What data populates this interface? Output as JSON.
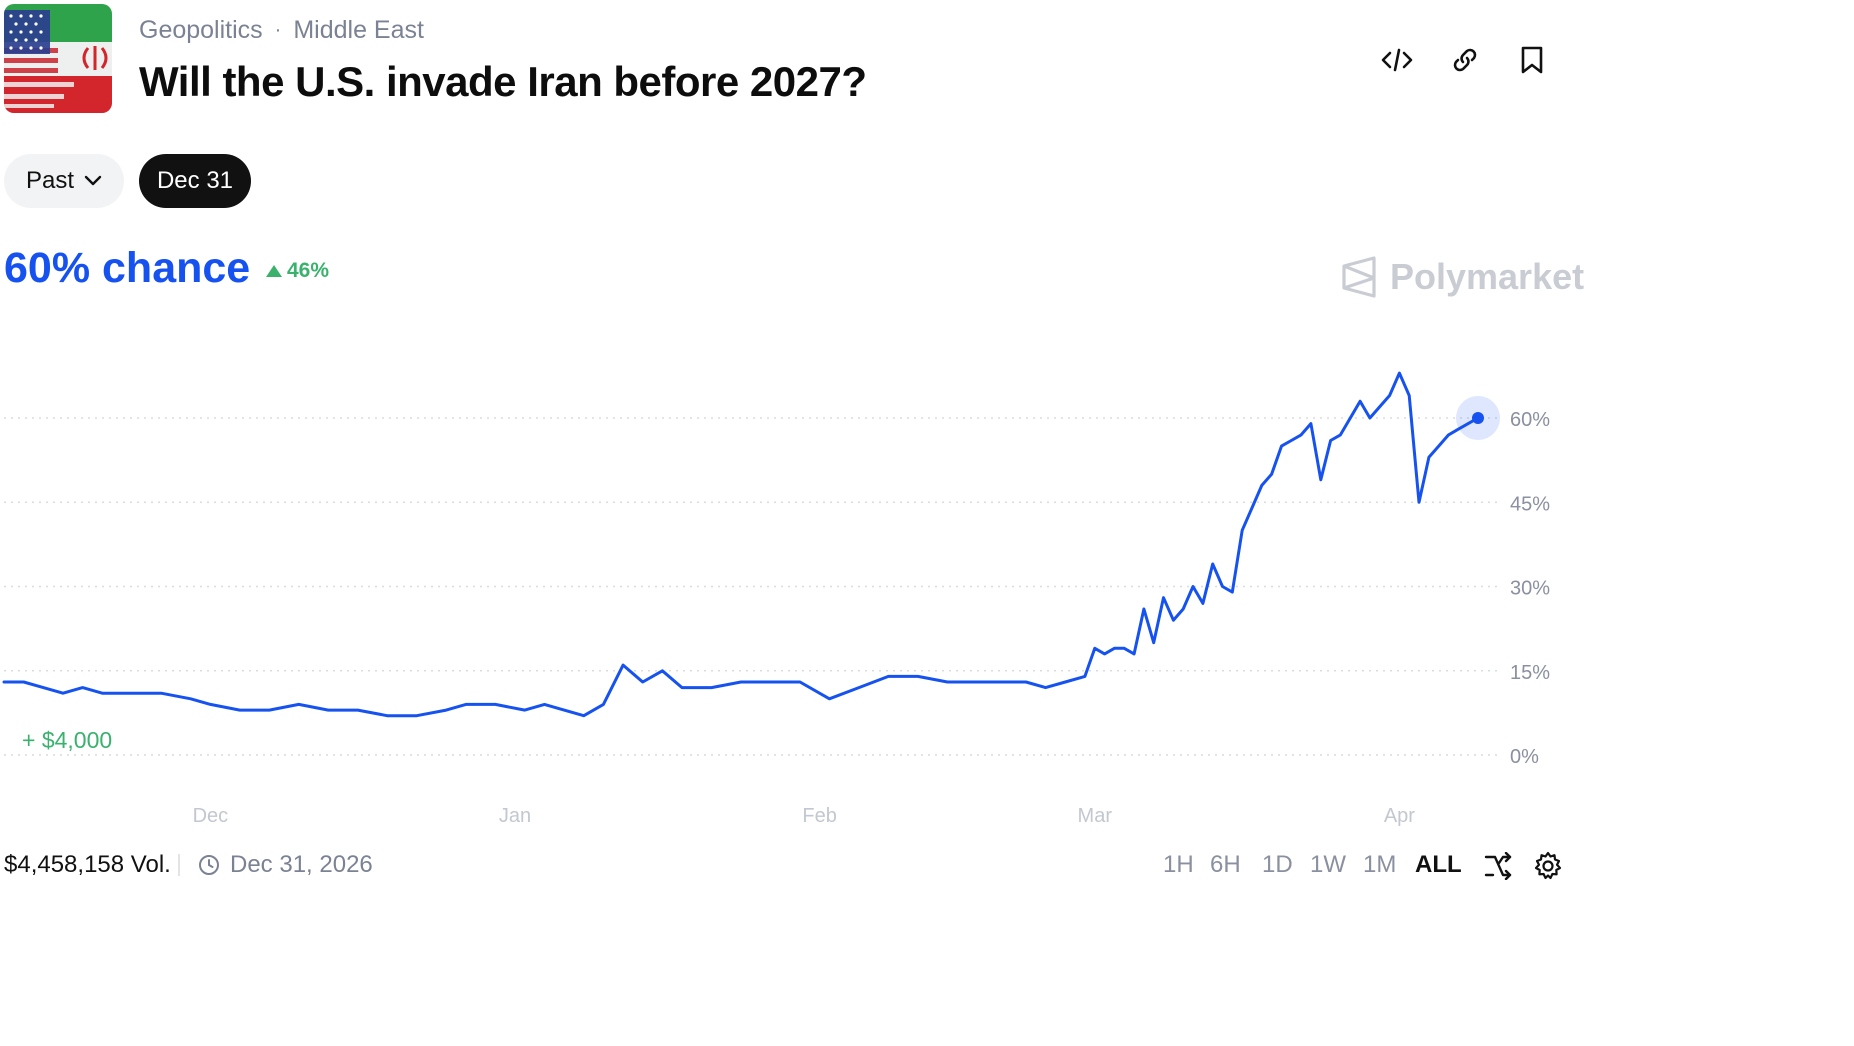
{
  "header": {
    "breadcrumb": [
      "Geopolitics",
      "Middle East"
    ],
    "breadcrumb_separator": "·",
    "title": "Will the U.S. invade Iran before 2027?",
    "actions": [
      "embed-code-icon",
      "link-icon",
      "bookmark-icon"
    ]
  },
  "filters": {
    "past_label": "Past",
    "date_label": "Dec 31"
  },
  "summary": {
    "chance_text": "60% chance",
    "change_text": "46%",
    "change_direction": "up",
    "accent_color": "#1652f0",
    "up_color": "#3ab26e"
  },
  "brand": {
    "name": "Polymarket"
  },
  "annotation": {
    "trade_text": "+ $4,000"
  },
  "chart_data": {
    "type": "line",
    "x_axis_labels": [
      "Dec",
      "Jan",
      "Feb",
      "Mar",
      "Apr"
    ],
    "y_axis_labels": [
      "0%",
      "15%",
      "30%",
      "45%",
      "60%"
    ],
    "ylim": [
      0,
      70
    ],
    "grid": "dotted horizontal",
    "y_axis_position": "right",
    "line_color": "#1652f0",
    "series": [
      {
        "x": [
          "2025-11-10",
          "2025-11-12",
          "2025-11-14",
          "2025-11-16",
          "2025-11-18",
          "2025-11-20",
          "2025-11-23",
          "2025-11-26",
          "2025-11-29",
          "2025-12-01",
          "2025-12-04",
          "2025-12-07",
          "2025-12-10",
          "2025-12-13",
          "2025-12-16",
          "2025-12-19",
          "2025-12-22",
          "2025-12-25",
          "2025-12-27",
          "2025-12-30",
          "2026-01-02",
          "2026-01-04",
          "2026-01-06",
          "2026-01-08",
          "2026-01-10",
          "2026-01-12",
          "2026-01-14",
          "2026-01-16",
          "2026-01-18",
          "2026-01-21",
          "2026-01-24",
          "2026-01-27",
          "2026-01-30",
          "2026-02-02",
          "2026-02-05",
          "2026-02-08",
          "2026-02-11",
          "2026-02-14",
          "2026-02-17",
          "2026-02-20",
          "2026-02-22",
          "2026-02-24",
          "2026-02-26",
          "2026-02-28",
          "2026-03-01",
          "2026-03-02",
          "2026-03-03",
          "2026-03-04",
          "2026-03-05",
          "2026-03-06",
          "2026-03-07",
          "2026-03-08",
          "2026-03-09",
          "2026-03-10",
          "2026-03-11",
          "2026-03-12",
          "2026-03-13",
          "2026-03-14",
          "2026-03-15",
          "2026-03-16",
          "2026-03-17",
          "2026-03-18",
          "2026-03-19",
          "2026-03-20",
          "2026-03-21",
          "2026-03-22",
          "2026-03-23",
          "2026-03-24",
          "2026-03-25",
          "2026-03-26",
          "2026-03-27",
          "2026-03-28",
          "2026-03-29",
          "2026-03-30",
          "2026-03-31",
          "2026-04-01",
          "2026-04-02",
          "2026-04-03",
          "2026-04-04",
          "2026-04-05",
          "2026-04-06",
          "2026-04-07",
          "2026-04-08",
          "2026-04-09"
        ],
        "values": [
          13,
          13,
          12,
          11,
          12,
          11,
          11,
          11,
          10,
          9,
          8,
          8,
          9,
          8,
          8,
          7,
          7,
          8,
          9,
          9,
          8,
          9,
          8,
          7,
          9,
          16,
          13,
          15,
          12,
          12,
          13,
          13,
          13,
          10,
          12,
          14,
          14,
          13,
          13,
          13,
          13,
          12,
          13,
          14,
          19,
          18,
          19,
          19,
          18,
          26,
          20,
          28,
          24,
          26,
          30,
          27,
          34,
          30,
          29,
          40,
          44,
          48,
          50,
          55,
          56,
          57,
          59,
          49,
          56,
          57,
          60,
          63,
          60,
          62,
          64,
          68,
          64,
          45,
          53,
          55,
          57,
          58,
          59,
          60
        ]
      }
    ],
    "current_value": 60
  },
  "footer": {
    "volume_text": "$4,458,158 Vol.",
    "end_date_text": "Dec 31, 2026",
    "ranges": [
      "1H",
      "6H",
      "1D",
      "1W",
      "1M",
      "ALL"
    ],
    "active_range": "ALL",
    "icons": [
      "shuffle-icon",
      "settings-icon"
    ]
  }
}
